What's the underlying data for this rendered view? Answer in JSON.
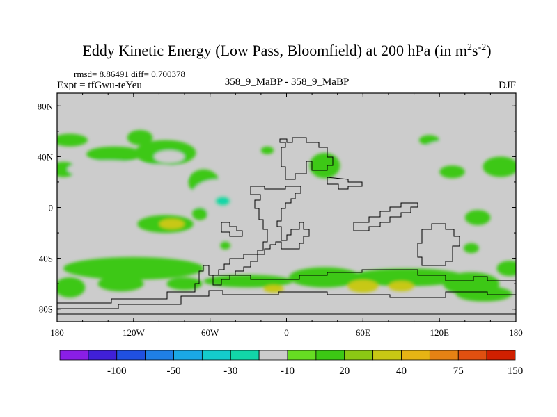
{
  "chart_data": {
    "type": "heatmap",
    "title_main": "Eddy Kinetic Energy (Low Pass, Bloomfield) at 200 hPa (in m",
    "title_sup1": "2",
    "title_mid": "s",
    "title_sup2": "-2",
    "title_end": ")",
    "stats": "rmsd= 8.86491 diff= 0.700378",
    "experiment": "Expt = tfGwu-teYeu",
    "case_label": "358_9_MaBP - 358_9_MaBP",
    "season": "DJF",
    "xlim": [
      -180,
      180
    ],
    "ylim": [
      -90,
      90
    ],
    "x_ticks": [
      {
        "value": -180,
        "label": "180"
      },
      {
        "value": -120,
        "label": "120W"
      },
      {
        "value": -60,
        "label": "60W"
      },
      {
        "value": 0,
        "label": "0"
      },
      {
        "value": 60,
        "label": "60E"
      },
      {
        "value": 120,
        "label": "120E"
      },
      {
        "value": 180,
        "label": "180"
      }
    ],
    "y_ticks": [
      {
        "value": 80,
        "label": "80N"
      },
      {
        "value": 40,
        "label": "40N"
      },
      {
        "value": 0,
        "label": "0"
      },
      {
        "value": -40,
        "label": "40S"
      },
      {
        "value": -80,
        "label": "80S"
      }
    ],
    "colorbar": {
      "colors": [
        "#8a1ee6",
        "#4020d8",
        "#2050e0",
        "#1f7fe6",
        "#1aa8e6",
        "#14cccc",
        "#12d6a8",
        "#cccccc",
        "#66dd22",
        "#3cc814",
        "#8cc814",
        "#c8c814",
        "#e6b414",
        "#e68214",
        "#e05010",
        "#d02000"
      ],
      "boundaries": [
        -150,
        -100,
        -75,
        -50,
        -40,
        -30,
        -20,
        -10,
        10,
        20,
        30,
        40,
        50,
        75,
        100,
        150
      ],
      "labels": [
        {
          "after_index": 1,
          "text": "-100"
        },
        {
          "after_index": 3,
          "text": "-50"
        },
        {
          "after_index": 5,
          "text": "-30"
        },
        {
          "after_index": 7,
          "text": "-10"
        },
        {
          "after_index": 9,
          "text": "20"
        },
        {
          "after_index": 11,
          "text": "40"
        },
        {
          "after_index": 13,
          "text": "75"
        },
        {
          "after_index": 15,
          "text": "150"
        }
      ]
    },
    "anomaly_features": [
      {
        "lon": -170,
        "lat": 53,
        "w": 14,
        "h": 5,
        "value": 15
      },
      {
        "lon": -115,
        "lat": 55,
        "w": 10,
        "h": 6,
        "value": 15
      },
      {
        "lon": -135,
        "lat": 42,
        "w": 22,
        "h": 6,
        "value": 15
      },
      {
        "lon": -95,
        "lat": 43,
        "w": 24,
        "h": 10,
        "value": 15
      },
      {
        "lon": -92,
        "lat": 40,
        "w": 12,
        "h": 5,
        "value": -12
      },
      {
        "lon": -175,
        "lat": 30,
        "w": 10,
        "h": 6,
        "value": 15
      },
      {
        "lon": -140,
        "lat": 30,
        "w": 32,
        "h": 7,
        "value": -12
      },
      {
        "lon": -100,
        "lat": 26,
        "w": 22,
        "h": 8,
        "value": -12
      },
      {
        "lon": -65,
        "lat": 20,
        "w": 12,
        "h": 10,
        "value": 15
      },
      {
        "lon": -55,
        "lat": 8,
        "w": 20,
        "h": 14,
        "value": -12
      },
      {
        "lon": -50,
        "lat": 5,
        "w": 6,
        "h": 4,
        "value": -25
      },
      {
        "lon": -68,
        "lat": -5,
        "w": 6,
        "h": 5,
        "value": 15
      },
      {
        "lon": -95,
        "lat": -13,
        "w": 22,
        "h": 7,
        "value": 15
      },
      {
        "lon": -90,
        "lat": -13,
        "w": 10,
        "h": 4,
        "value": 30
      },
      {
        "lon": -48,
        "lat": -30,
        "w": 4,
        "h": 3,
        "value": 15
      },
      {
        "lon": -15,
        "lat": 45,
        "w": 5,
        "h": 3,
        "value": 15
      },
      {
        "lon": 30,
        "lat": 33,
        "w": 12,
        "h": 10,
        "value": 15
      },
      {
        "lon": 20,
        "lat": -32,
        "w": 6,
        "h": 4,
        "value": -12
      },
      {
        "lon": 40,
        "lat": 57,
        "w": 6,
        "h": 3,
        "value": -12
      },
      {
        "lon": 112,
        "lat": 53,
        "w": 8,
        "h": 4,
        "value": 15
      },
      {
        "lon": 130,
        "lat": 46,
        "w": 22,
        "h": 7,
        "value": -12
      },
      {
        "lon": 150,
        "lat": 70,
        "w": 8,
        "h": 5,
        "value": -12
      },
      {
        "lon": 168,
        "lat": 32,
        "w": 14,
        "h": 8,
        "value": 15
      },
      {
        "lon": 130,
        "lat": 28,
        "w": 10,
        "h": 5,
        "value": 15
      },
      {
        "lon": 150,
        "lat": -8,
        "w": 10,
        "h": 6,
        "value": 15
      },
      {
        "lon": 145,
        "lat": -32,
        "w": 6,
        "h": 4,
        "value": 15
      },
      {
        "lon": -120,
        "lat": -48,
        "w": 55,
        "h": 9,
        "value": 15
      },
      {
        "lon": -170,
        "lat": -63,
        "w": 12,
        "h": 8,
        "value": 15
      },
      {
        "lon": -130,
        "lat": -60,
        "w": 18,
        "h": 6,
        "value": 15
      },
      {
        "lon": -80,
        "lat": -60,
        "w": 14,
        "h": 5,
        "value": 15
      },
      {
        "lon": -30,
        "lat": -58,
        "w": 35,
        "h": 5,
        "value": 15
      },
      {
        "lon": 30,
        "lat": -55,
        "w": 28,
        "h": 8,
        "value": 15
      },
      {
        "lon": 95,
        "lat": -55,
        "w": 45,
        "h": 7,
        "value": 15
      },
      {
        "lon": 145,
        "lat": -60,
        "w": 22,
        "h": 9,
        "value": 15
      },
      {
        "lon": 175,
        "lat": -48,
        "w": 10,
        "h": 6,
        "value": 15
      },
      {
        "lon": 60,
        "lat": -62,
        "w": 12,
        "h": 5,
        "value": 30
      },
      {
        "lon": 90,
        "lat": -62,
        "w": 10,
        "h": 4,
        "value": 30
      },
      {
        "lon": -10,
        "lat": -64,
        "w": 8,
        "h": 3,
        "value": 30
      },
      {
        "lon": 155,
        "lat": -68,
        "w": 22,
        "h": 6,
        "value": 15
      }
    ]
  }
}
